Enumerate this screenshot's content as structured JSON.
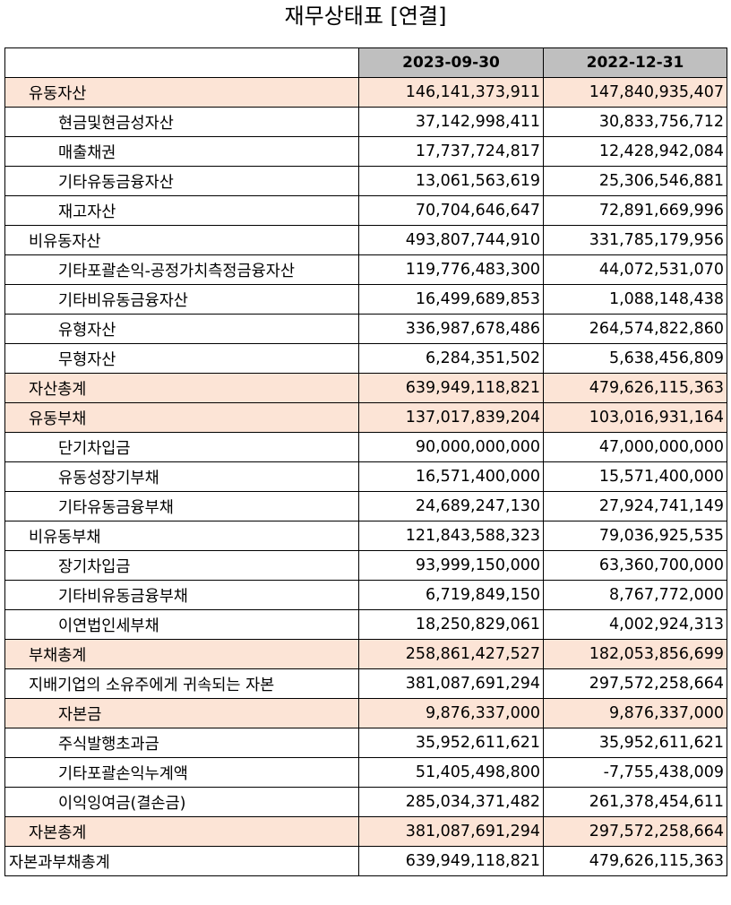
{
  "title": "재무상태표 [연결]",
  "columns": [
    "2023-09-30",
    "2022-12-31"
  ],
  "highlight_color": "#fce4d6",
  "header_color": "#bfbfbf",
  "rows": [
    {
      "label": "유동자산",
      "level": 1,
      "highlight": true,
      "v1": "146,141,373,911",
      "v2": "147,840,935,407"
    },
    {
      "label": "현금및현금성자산",
      "level": 2,
      "highlight": false,
      "v1": "37,142,998,411",
      "v2": "30,833,756,712"
    },
    {
      "label": "매출채권",
      "level": 2,
      "highlight": false,
      "v1": "17,737,724,817",
      "v2": "12,428,942,084"
    },
    {
      "label": "기타유동금융자산",
      "level": 2,
      "highlight": false,
      "v1": "13,061,563,619",
      "v2": "25,306,546,881"
    },
    {
      "label": "재고자산",
      "level": 2,
      "highlight": false,
      "v1": "70,704,646,647",
      "v2": "72,891,669,996"
    },
    {
      "label": "비유동자산",
      "level": 1,
      "highlight": false,
      "v1": "493,807,744,910",
      "v2": "331,785,179,956"
    },
    {
      "label": "기타포괄손익-공정가치측정금융자산",
      "level": 2,
      "highlight": false,
      "v1": "119,776,483,300",
      "v2": "44,072,531,070"
    },
    {
      "label": "기타비유동금융자산",
      "level": 2,
      "highlight": false,
      "v1": "16,499,689,853",
      "v2": "1,088,148,438"
    },
    {
      "label": "유형자산",
      "level": 2,
      "highlight": false,
      "v1": "336,987,678,486",
      "v2": "264,574,822,860"
    },
    {
      "label": "무형자산",
      "level": 2,
      "highlight": false,
      "v1": "6,284,351,502",
      "v2": "5,638,456,809"
    },
    {
      "label": "자산총계",
      "level": 1,
      "highlight": true,
      "v1": "639,949,118,821",
      "v2": "479,626,115,363"
    },
    {
      "label": "유동부채",
      "level": 1,
      "highlight": true,
      "v1": "137,017,839,204",
      "v2": "103,016,931,164"
    },
    {
      "label": "단기차입금",
      "level": 2,
      "highlight": false,
      "v1": "90,000,000,000",
      "v2": "47,000,000,000"
    },
    {
      "label": "유동성장기부채",
      "level": 2,
      "highlight": false,
      "v1": "16,571,400,000",
      "v2": "15,571,400,000"
    },
    {
      "label": "기타유동금융부채",
      "level": 2,
      "highlight": false,
      "v1": "24,689,247,130",
      "v2": "27,924,741,149"
    },
    {
      "label": "비유동부채",
      "level": 1,
      "highlight": false,
      "v1": "121,843,588,323",
      "v2": "79,036,925,535"
    },
    {
      "label": "장기차입금",
      "level": 2,
      "highlight": false,
      "v1": "93,999,150,000",
      "v2": "63,360,700,000"
    },
    {
      "label": "기타비유동금융부채",
      "level": 2,
      "highlight": false,
      "v1": "6,719,849,150",
      "v2": "8,767,772,000"
    },
    {
      "label": "이연법인세부채",
      "level": 2,
      "highlight": false,
      "v1": "18,250,829,061",
      "v2": "4,002,924,313"
    },
    {
      "label": "부채총계",
      "level": 1,
      "highlight": true,
      "v1": "258,861,427,527",
      "v2": "182,053,856,699"
    },
    {
      "label": "지배기업의 소유주에게 귀속되는 자본",
      "level": 1,
      "highlight": false,
      "v1": "381,087,691,294",
      "v2": "297,572,258,664"
    },
    {
      "label": "자본금",
      "level": 2,
      "highlight": true,
      "v1": "9,876,337,000",
      "v2": "9,876,337,000"
    },
    {
      "label": "주식발행초과금",
      "level": 2,
      "highlight": false,
      "v1": "35,952,611,621",
      "v2": "35,952,611,621"
    },
    {
      "label": "기타포괄손익누계액",
      "level": 2,
      "highlight": false,
      "v1": "51,405,498,800",
      "v2": "-7,755,438,009"
    },
    {
      "label": "이익잉여금(결손금)",
      "level": 2,
      "highlight": false,
      "v1": "285,034,371,482",
      "v2": "261,378,454,611"
    },
    {
      "label": "자본총계",
      "level": 1,
      "highlight": true,
      "v1": "381,087,691,294",
      "v2": "297,572,258,664"
    },
    {
      "label": "자본과부채총계",
      "level": 0,
      "highlight": false,
      "v1": "639,949,118,821",
      "v2": "479,626,115,363"
    }
  ]
}
